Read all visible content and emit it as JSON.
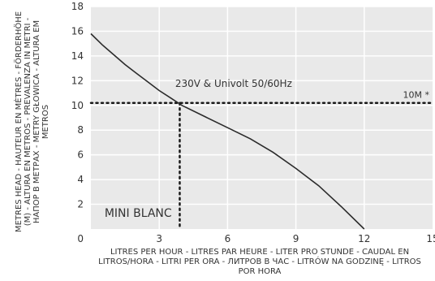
{
  "chart_data": {
    "type": "line",
    "ylabel": "METRES HEAD - HAUTEUR EN MÈTRES - FÖRDERHÖHE (M) - ALTURA EN METROS - PREVALENZA IN METRI - НАПОР В МЕТРАХ - METRY GŁOWICA - ALTURA EM METROS",
    "xlabel": "LITRES PER HOUR - LITRES PAR HEURE - LITER PRO STUNDE - CAUDAL EN LITROS/HORA - LITRI PER ORA - ЛИТРОВ В ЧАС - LITRÓW NA GODZINĘ - LITROS POR HORA",
    "xlim": [
      0,
      15
    ],
    "ylim": [
      0,
      18
    ],
    "x_ticks": [
      "3",
      "6",
      "9",
      "12",
      "15"
    ],
    "x_origin_label": "0",
    "y_ticks": [
      "2",
      "4",
      "6",
      "8",
      "10",
      "12",
      "14",
      "16",
      "18"
    ],
    "grid": true,
    "series": [
      {
        "name": "230V & Univolt 50/60Hz",
        "x": [
          0,
          0.5,
          1,
          1.5,
          2,
          2.5,
          3,
          3.5,
          4,
          5,
          6,
          7,
          8,
          9,
          10,
          11,
          12
        ],
        "y": [
          15.8,
          14.9,
          14.1,
          13.3,
          12.6,
          11.9,
          11.2,
          10.6,
          10.0,
          9.1,
          8.2,
          7.3,
          6.2,
          4.9,
          3.5,
          1.8,
          0
        ]
      }
    ],
    "reference_lines": [
      {
        "axis": "y",
        "value": 10.2,
        "label": "10M *"
      },
      {
        "axis": "x",
        "value": 3.9,
        "from": 0,
        "to": 10.2
      }
    ],
    "annotations": [
      {
        "text": "230V & Univolt 50/60Hz",
        "x": 3.7,
        "y": 11.5
      },
      {
        "text": "MINI BLANC",
        "x": 0.6,
        "y": 1.0
      }
    ]
  },
  "colors": {
    "plot_bg": "#e9e9e9",
    "grid": "#ffffff",
    "curve": "#2b2b2b",
    "text": "#333333"
  }
}
